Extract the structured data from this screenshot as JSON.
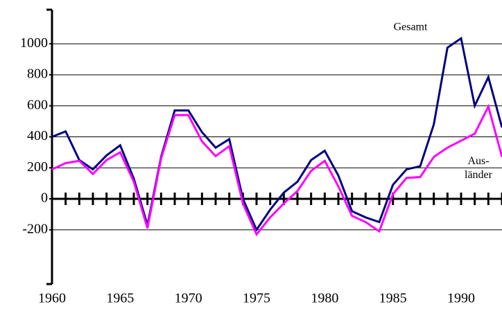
{
  "chart_data": {
    "type": "line",
    "x": [
      1960,
      1961,
      1962,
      1963,
      1964,
      1965,
      1966,
      1967,
      1968,
      1969,
      1970,
      1971,
      1972,
      1973,
      1974,
      1975,
      1976,
      1977,
      1978,
      1979,
      1980,
      1981,
      1982,
      1983,
      1984,
      1985,
      1986,
      1987,
      1988,
      1989,
      1990,
      1991,
      1992,
      1993
    ],
    "series": [
      {
        "name": "Gesamt",
        "color": "#000080",
        "values": [
          400,
          435,
          250,
          190,
          280,
          345,
          130,
          -170,
          270,
          570,
          570,
          430,
          330,
          385,
          0,
          -200,
          -70,
          40,
          110,
          250,
          310,
          150,
          -80,
          -120,
          -150,
          90,
          190,
          210,
          480,
          975,
          1035,
          600,
          785,
          460
        ]
      },
      {
        "name": "Aus-länder",
        "color": "#ff00ff",
        "values": [
          190,
          230,
          245,
          160,
          250,
          300,
          110,
          -190,
          260,
          540,
          540,
          370,
          275,
          340,
          -30,
          -230,
          -120,
          -30,
          50,
          180,
          245,
          80,
          -110,
          -150,
          -210,
          30,
          135,
          140,
          270,
          330,
          375,
          420,
          595,
          270
        ]
      }
    ],
    "xlim": [
      1960,
      1993
    ],
    "xticks": [
      1960,
      1965,
      1970,
      1975,
      1980,
      1985,
      1990
    ],
    "ylim": [
      -550,
      1220
    ],
    "yticks": [
      -200,
      0,
      200,
      400,
      600,
      800,
      1000
    ],
    "grid": true
  }
}
